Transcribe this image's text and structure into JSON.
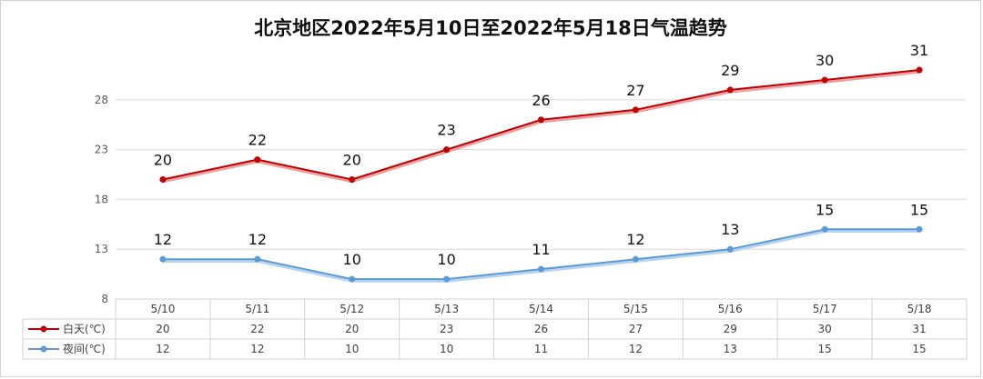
{
  "chart_data": {
    "type": "line",
    "title": "北京地区2022年5月10日至2022年5月18日气温趋势",
    "categories": [
      "5/10",
      "5/11",
      "5/12",
      "5/13",
      "5/14",
      "5/15",
      "5/16",
      "5/17",
      "5/18"
    ],
    "series": [
      {
        "name": "白天(℃)",
        "values": [
          20,
          22,
          20,
          23,
          26,
          27,
          29,
          30,
          31
        ],
        "color": "#c00000"
      },
      {
        "name": "夜间(℃)",
        "values": [
          12,
          12,
          10,
          10,
          11,
          12,
          13,
          15,
          15
        ],
        "color": "#5b9bd5"
      }
    ],
    "y_ticks": [
      8,
      13,
      18,
      23,
      28
    ],
    "ylim": [
      8,
      31
    ],
    "grid": true,
    "legend": "data-table-left"
  }
}
